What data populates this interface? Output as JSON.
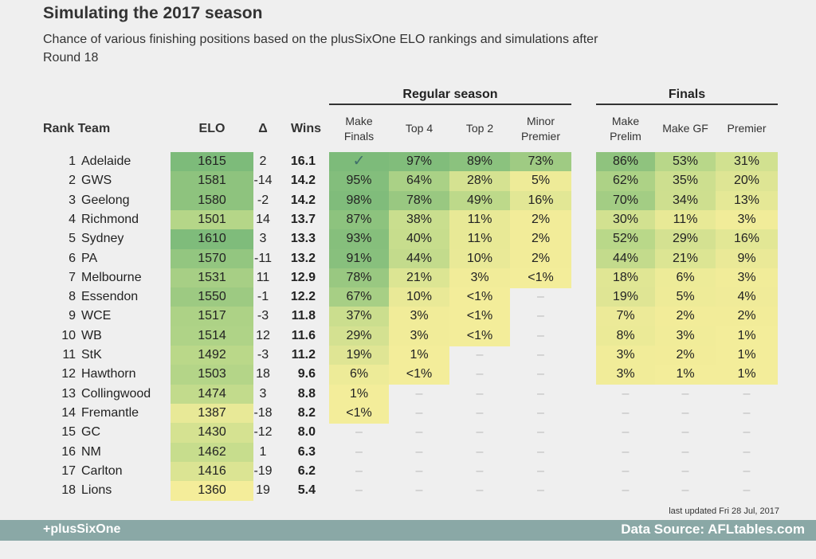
{
  "title": "Simulating the 2017 season",
  "subtitle": "Chance of various finishing positions based on the plusSixOne ELO rankings and simulations after Round 18",
  "group_regular": "Regular season",
  "group_finals": "Finals",
  "headers": {
    "rank_team": "Rank Team",
    "elo": "ELO",
    "delta": "Δ",
    "wins": "Wins",
    "make_finals": "Make\nFinals",
    "top4": "Top 4",
    "top2": "Top 2",
    "minor_premier": "Minor\nPremier",
    "make_prelim": "Make\nPrelim",
    "make_gf": "Make GF",
    "premier": "Premier"
  },
  "updated": "last updated Fri 28 Jul, 2017",
  "footer_left": "+plusSixOne",
  "footer_right": "Data Source: AFLtables.com",
  "colors": {
    "low": "#f4ed9a",
    "mid": "#bcd98a",
    "high": "#7dbb7a",
    "footer": "#8aa8a6"
  },
  "chart_data": {
    "type": "table",
    "columns": [
      "Rank",
      "Team",
      "ELO",
      "Δ",
      "Wins",
      "Make Finals",
      "Top 4",
      "Top 2",
      "Minor Premier",
      "Make Prelim",
      "Make GF",
      "Premier"
    ],
    "rows": [
      {
        "rank": 1,
        "team": "Adelaide",
        "elo": 1615,
        "delta": 2,
        "wins": "16.1",
        "make_finals": "✓",
        "top4": "97%",
        "top2": "89%",
        "minor": "73%",
        "prelim": "86%",
        "gf": "53%",
        "premier": "31%"
      },
      {
        "rank": 2,
        "team": "GWS",
        "elo": 1581,
        "delta": -14,
        "wins": "14.2",
        "make_finals": "95%",
        "top4": "64%",
        "top2": "28%",
        "minor": "5%",
        "prelim": "62%",
        "gf": "35%",
        "premier": "20%"
      },
      {
        "rank": 3,
        "team": "Geelong",
        "elo": 1580,
        "delta": -2,
        "wins": "14.2",
        "make_finals": "98%",
        "top4": "78%",
        "top2": "49%",
        "minor": "16%",
        "prelim": "70%",
        "gf": "34%",
        "premier": "13%"
      },
      {
        "rank": 4,
        "team": "Richmond",
        "elo": 1501,
        "delta": 14,
        "wins": "13.7",
        "make_finals": "87%",
        "top4": "38%",
        "top2": "11%",
        "minor": "2%",
        "prelim": "30%",
        "gf": "11%",
        "premier": "3%"
      },
      {
        "rank": 5,
        "team": "Sydney",
        "elo": 1610,
        "delta": 3,
        "wins": "13.3",
        "make_finals": "93%",
        "top4": "40%",
        "top2": "11%",
        "minor": "2%",
        "prelim": "52%",
        "gf": "29%",
        "premier": "16%"
      },
      {
        "rank": 6,
        "team": "PA",
        "elo": 1570,
        "delta": -11,
        "wins": "13.2",
        "make_finals": "91%",
        "top4": "44%",
        "top2": "10%",
        "minor": "2%",
        "prelim": "44%",
        "gf": "21%",
        "premier": "9%"
      },
      {
        "rank": 7,
        "team": "Melbourne",
        "elo": 1531,
        "delta": 11,
        "wins": "12.9",
        "make_finals": "78%",
        "top4": "21%",
        "top2": "3%",
        "minor": "<1%",
        "prelim": "18%",
        "gf": "6%",
        "premier": "3%"
      },
      {
        "rank": 8,
        "team": "Essendon",
        "elo": 1550,
        "delta": -1,
        "wins": "12.2",
        "make_finals": "67%",
        "top4": "10%",
        "top2": "<1%",
        "minor": "-",
        "prelim": "19%",
        "gf": "5%",
        "premier": "4%"
      },
      {
        "rank": 9,
        "team": "WCE",
        "elo": 1517,
        "delta": -3,
        "wins": "11.8",
        "make_finals": "37%",
        "top4": "3%",
        "top2": "<1%",
        "minor": "-",
        "prelim": "7%",
        "gf": "2%",
        "premier": "2%"
      },
      {
        "rank": 10,
        "team": "WB",
        "elo": 1514,
        "delta": 12,
        "wins": "11.6",
        "make_finals": "29%",
        "top4": "3%",
        "top2": "<1%",
        "minor": "-",
        "prelim": "8%",
        "gf": "3%",
        "premier": "1%"
      },
      {
        "rank": 11,
        "team": "StK",
        "elo": 1492,
        "delta": -3,
        "wins": "11.2",
        "make_finals": "19%",
        "top4": "1%",
        "top2": "-",
        "minor": "-",
        "prelim": "3%",
        "gf": "2%",
        "premier": "1%"
      },
      {
        "rank": 12,
        "team": "Hawthorn",
        "elo": 1503,
        "delta": 18,
        "wins": "9.6",
        "make_finals": "6%",
        "top4": "<1%",
        "top2": "-",
        "minor": "-",
        "prelim": "3%",
        "gf": "1%",
        "premier": "1%"
      },
      {
        "rank": 13,
        "team": "Collingwood",
        "elo": 1474,
        "delta": 3,
        "wins": "8.8",
        "make_finals": "1%",
        "top4": "-",
        "top2": "-",
        "minor": "-",
        "prelim": "-",
        "gf": "-",
        "premier": "-"
      },
      {
        "rank": 14,
        "team": "Fremantle",
        "elo": 1387,
        "delta": -18,
        "wins": "8.2",
        "make_finals": "<1%",
        "top4": "-",
        "top2": "-",
        "minor": "-",
        "prelim": "-",
        "gf": "-",
        "premier": "-"
      },
      {
        "rank": 15,
        "team": "GC",
        "elo": 1430,
        "delta": -12,
        "wins": "8.0",
        "make_finals": "-",
        "top4": "-",
        "top2": "-",
        "minor": "-",
        "prelim": "-",
        "gf": "-",
        "premier": "-"
      },
      {
        "rank": 16,
        "team": "NM",
        "elo": 1462,
        "delta": 1,
        "wins": "6.3",
        "make_finals": "-",
        "top4": "-",
        "top2": "-",
        "minor": "-",
        "prelim": "-",
        "gf": "-",
        "premier": "-"
      },
      {
        "rank": 17,
        "team": "Carlton",
        "elo": 1416,
        "delta": -19,
        "wins": "6.2",
        "make_finals": "-",
        "top4": "-",
        "top2": "-",
        "minor": "-",
        "prelim": "-",
        "gf": "-",
        "premier": "-"
      },
      {
        "rank": 18,
        "team": "Lions",
        "elo": 1360,
        "delta": 19,
        "wins": "5.4",
        "make_finals": "-",
        "top4": "-",
        "top2": "-",
        "minor": "-",
        "prelim": "-",
        "gf": "-",
        "premier": "-"
      }
    ]
  }
}
